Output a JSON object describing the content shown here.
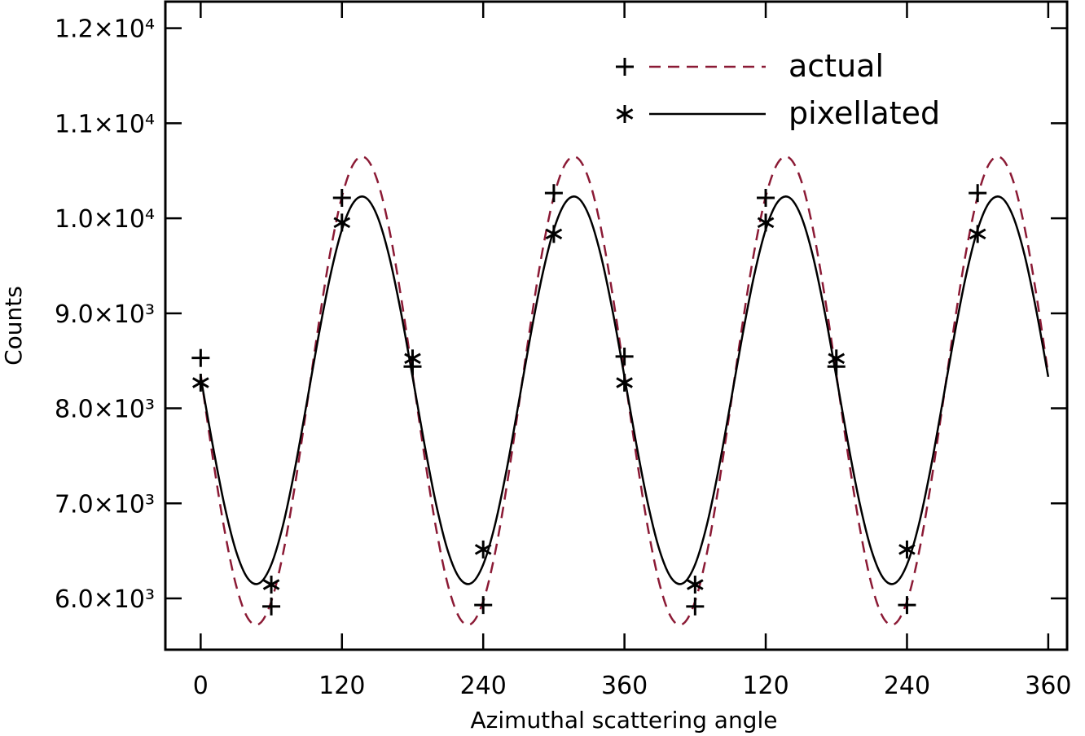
{
  "chart_data": {
    "type": "line",
    "xlabel": "Azimuthal scattering angle",
    "ylabel": "Counts",
    "xlim": [
      -30,
      736
    ],
    "ylim": [
      5460,
      12280
    ],
    "xticks": [
      0,
      120,
      240,
      360,
      {
        "value": 480,
        "label": "120"
      },
      {
        "value": 600,
        "label": "240"
      },
      {
        "value": 720,
        "label": "360"
      }
    ],
    "yticks": [
      {
        "value": 6000,
        "label": "6.0×10³"
      },
      {
        "value": 7000,
        "label": "7.0×10³"
      },
      {
        "value": 8000,
        "label": "8.0×10³"
      },
      {
        "value": 9000,
        "label": "9.0×10³"
      },
      {
        "value": 10000,
        "label": "1.0×10⁴"
      },
      {
        "value": 11000,
        "label": "1.1×10⁴"
      },
      {
        "value": 12000,
        "label": "1.2×10⁴"
      }
    ],
    "legend": "upper right",
    "x": [
      0,
      10,
      20,
      30,
      40,
      50,
      60,
      70,
      80,
      90,
      100,
      110,
      120,
      130,
      140,
      150,
      160,
      170,
      180,
      190,
      200,
      210,
      220,
      230,
      240,
      250,
      260,
      270,
      280,
      290,
      300,
      310,
      320,
      330,
      340,
      350,
      360,
      370,
      380,
      390,
      400,
      410,
      420,
      430,
      440,
      450,
      460,
      470,
      480,
      490,
      500,
      510,
      520,
      530,
      540,
      550,
      560,
      570,
      580,
      590,
      600,
      610,
      620,
      630,
      640,
      650,
      660,
      670,
      680,
      690,
      700,
      710,
      720
    ],
    "series": [
      {
        "name": "actual",
        "color": "#8b1a35",
        "text_color": "#7a0f2c",
        "dashed": true,
        "marker": "+",
        "values": [
          8357,
          7506,
          6736,
          6142,
          5793,
          5734,
          5969,
          6473,
          7182,
          8013,
          8864,
          9634,
          10228,
          10577,
          10636,
          10401,
          9897,
          9188,
          8357,
          7506,
          6736,
          6142,
          5793,
          5734,
          5969,
          6473,
          7182,
          8013,
          8864,
          9634,
          10228,
          10577,
          10636,
          10401,
          9897,
          9188,
          8357,
          7506,
          6736,
          6142,
          5793,
          5734,
          5969,
          6473,
          7182,
          8013,
          8864,
          9634,
          10228,
          10577,
          10636,
          10401,
          9897,
          9188,
          8357,
          7506,
          6736,
          6142,
          5793,
          5734,
          5969,
          6473,
          7182,
          8013,
          8864,
          9634,
          10228,
          10577,
          10636,
          10401,
          9897,
          9188,
          8357
        ],
        "points": {
          "x": [
            0,
            60,
            120,
            180,
            240,
            300,
            360,
            420,
            480,
            540,
            600,
            660
          ],
          "values": [
            8530,
            5915,
            10215,
            8440,
            5930,
            10265,
            8545,
            5915,
            10215,
            8440,
            5930,
            10265
          ]
        }
      },
      {
        "name": "pixellated",
        "color": "#000000",
        "text_color": "#000000",
        "dashed": false,
        "marker": "*",
        "values": [
          8332,
          7628,
          6991,
          6499,
          6211,
          6161,
          6356,
          6773,
          7360,
          8048,
          8752,
          9389,
          9881,
          10169,
          10219,
          10024,
          9607,
          9020,
          8332,
          7628,
          6991,
          6499,
          6211,
          6161,
          6356,
          6773,
          7360,
          8048,
          8752,
          9389,
          9881,
          10169,
          10219,
          10024,
          9607,
          9020,
          8332,
          7628,
          6991,
          6499,
          6211,
          6161,
          6356,
          6773,
          7360,
          8048,
          8752,
          9389,
          9881,
          10169,
          10219,
          10024,
          9607,
          9020,
          8332,
          7628,
          6991,
          6499,
          6211,
          6161,
          6356,
          6773,
          7360,
          8048,
          8752,
          9389,
          9881,
          10169,
          10219,
          10024,
          9607,
          9020,
          8332
        ],
        "points": {
          "x": [
            0,
            60,
            120,
            180,
            240,
            300,
            360,
            420,
            480,
            540,
            600,
            660
          ],
          "values": [
            8270,
            6145,
            9955,
            8525,
            6515,
            9835,
            8270,
            6145,
            9955,
            8525,
            6515,
            9835
          ]
        }
      }
    ]
  }
}
